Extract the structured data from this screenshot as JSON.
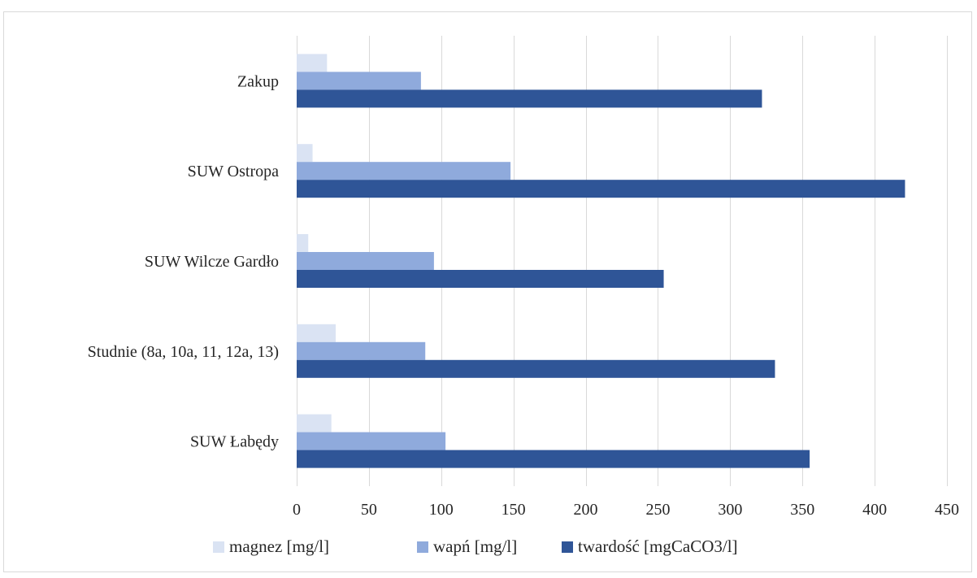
{
  "chart_data": {
    "type": "bar",
    "orientation": "horizontal",
    "categories": [
      "SUW Łabędy",
      "Studnie (8a, 10a, 11, 12a, 13)",
      "SUW Wilcze Gardło",
      "SUW Ostropa",
      "Zakup"
    ],
    "series": [
      {
        "name": "magnez [mg/l]",
        "color": "#dae3f3",
        "values": [
          24,
          27,
          8,
          11,
          21
        ]
      },
      {
        "name": "wapń [mg/l]",
        "color": "#8faadc",
        "values": [
          103,
          89,
          95,
          148,
          86
        ]
      },
      {
        "name": "twardość [mgCaCO3/l]",
        "color": "#2f5597",
        "values": [
          355,
          331,
          254,
          421,
          322
        ]
      }
    ],
    "xlim": [
      0,
      450
    ],
    "xticks": [
      0,
      50,
      100,
      150,
      200,
      250,
      300,
      350,
      400,
      450
    ],
    "grid": true,
    "legend_position": "bottom",
    "title": "",
    "xlabel": "",
    "ylabel": ""
  }
}
